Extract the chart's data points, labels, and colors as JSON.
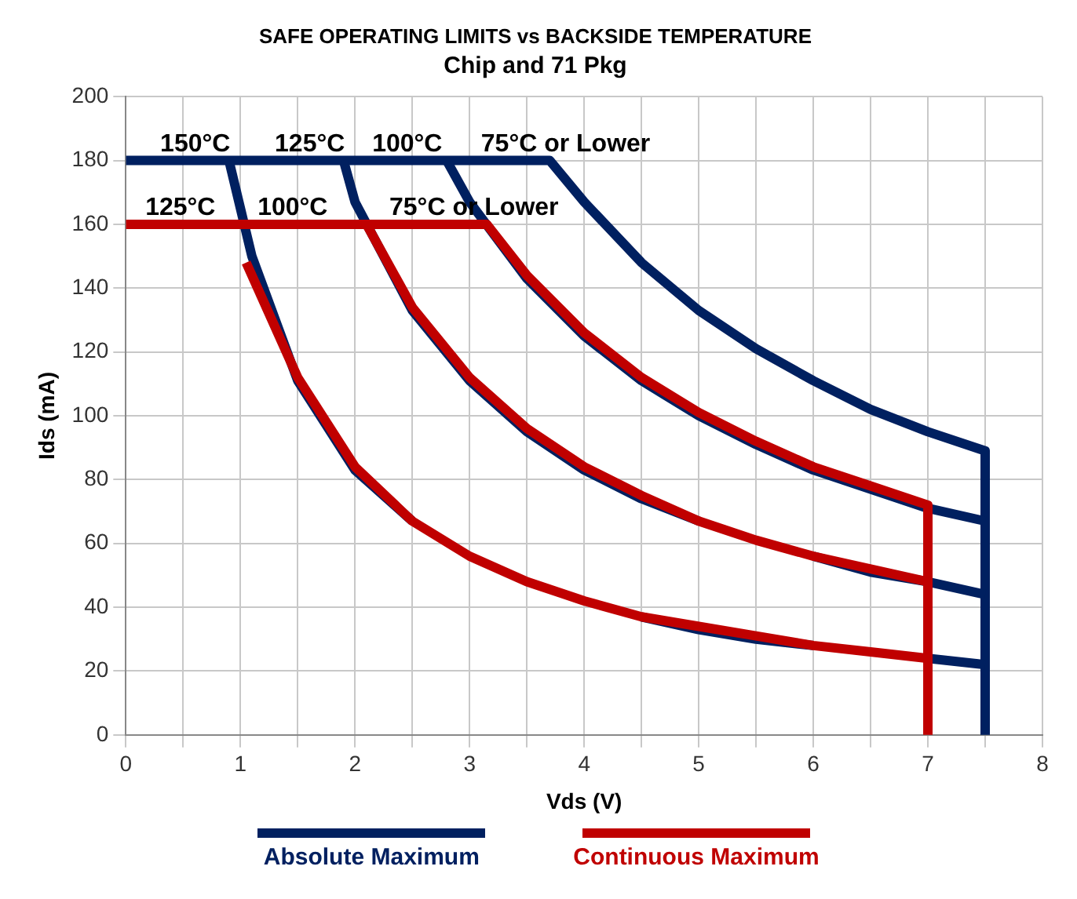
{
  "chart_data": {
    "type": "line",
    "title": "SAFE OPERATING LIMITS vs BACKSIDE TEMPERATURE",
    "subtitle": "Chip and 71 Pkg",
    "xlabel": "Vds (V)",
    "ylabel": "Ids (mA)",
    "xlim": [
      0,
      8
    ],
    "ylim": [
      0,
      200
    ],
    "xticks": [
      0,
      {
        "value": 0.5,
        "label": null
      },
      1,
      {
        "value": 1.5,
        "label": null
      },
      2,
      {
        "value": 2.5,
        "label": null
      },
      3,
      {
        "value": 3.5,
        "label": null
      },
      4,
      {
        "value": 4.5,
        "label": null
      },
      5,
      {
        "value": 5.5,
        "label": null
      },
      6,
      {
        "value": 6.5,
        "label": null
      },
      7,
      {
        "value": 7.5,
        "label": null
      },
      8
    ],
    "yticks": [
      0,
      20,
      40,
      60,
      80,
      100,
      120,
      140,
      160,
      180,
      200
    ],
    "grid": true,
    "legend": "bottom",
    "marker": "none",
    "line_style": "solid",
    "series": [
      {
        "name": "Absolute Maximum",
        "color": "#002060",
        "x": [
          0,
          3.7,
          4,
          4.5,
          5,
          5.5,
          6,
          6.5,
          7,
          7.5,
          7.5
        ],
        "values": [
          180,
          180,
          167,
          148,
          133,
          121,
          111,
          102,
          95,
          89,
          0
        ]
      },
      {
        "color": "#002060",
        "x": [
          2.8,
          3,
          3.5,
          4,
          4.5,
          5,
          5.5,
          6,
          6.5,
          7,
          7.5
        ],
        "values": [
          180,
          167,
          143,
          125,
          111,
          100,
          91,
          83,
          77,
          71,
          67
        ]
      },
      {
        "color": "#002060",
        "x": [
          1.9,
          2,
          2.5,
          3,
          3.5,
          4,
          4.5,
          5,
          5.5,
          6,
          6.5,
          7,
          7.5
        ],
        "values": [
          180,
          167,
          133,
          111,
          95,
          83,
          74,
          67,
          null,
          56,
          51,
          48,
          44
        ]
      },
      {
        "color": "#002060",
        "x": [
          0.9,
          1.1,
          1.5,
          2,
          2.5,
          3,
          3.5,
          4,
          4.5,
          5,
          5.5,
          6,
          6.5,
          7,
          7.5
        ],
        "values": [
          180,
          150,
          111,
          83,
          67,
          null,
          null,
          null,
          37,
          33,
          30,
          28,
          null,
          24,
          22
        ]
      },
      {
        "name": "Continuous Maximum",
        "color": "#c00000",
        "x": [
          0,
          3.15,
          3.5,
          4,
          4.5,
          5,
          5.5,
          6,
          6.5,
          7,
          7
        ],
        "values": [
          160,
          160,
          144,
          126,
          112,
          101,
          92,
          84,
          78,
          72,
          0
        ]
      },
      {
        "color": "#c00000",
        "x": [
          2.1,
          2.5,
          3,
          3.5,
          4,
          4.5,
          5,
          5.5,
          6,
          6.5,
          7
        ],
        "values": [
          160,
          134,
          112,
          96,
          84,
          75,
          67,
          61,
          56,
          52,
          48
        ]
      },
      {
        "color": "#c00000",
        "x": [
          1.05,
          1.5,
          2,
          2.5,
          3,
          3.5,
          4,
          4.5,
          5,
          5.5,
          6,
          6.5,
          7
        ],
        "values": [
          148,
          112,
          84,
          67,
          56,
          48,
          42,
          37,
          34,
          31,
          28,
          26,
          24
        ]
      }
    ],
    "annotations": [
      {
        "text": "150°C",
        "x": 0.3,
        "y": 180
      },
      {
        "text": "125°C",
        "x": 1.3,
        "y": 180
      },
      {
        "text": "100°C",
        "x": 2.15,
        "y": 180
      },
      {
        "text": "75°C or Lower",
        "x": 3.1,
        "y": 180
      },
      {
        "text": "125°C",
        "x": 0.17,
        "y": 160
      },
      {
        "text": "100°C",
        "x": 1.15,
        "y": 160
      },
      {
        "text": "75°C or Lower",
        "x": 2.3,
        "y": 160
      }
    ]
  }
}
